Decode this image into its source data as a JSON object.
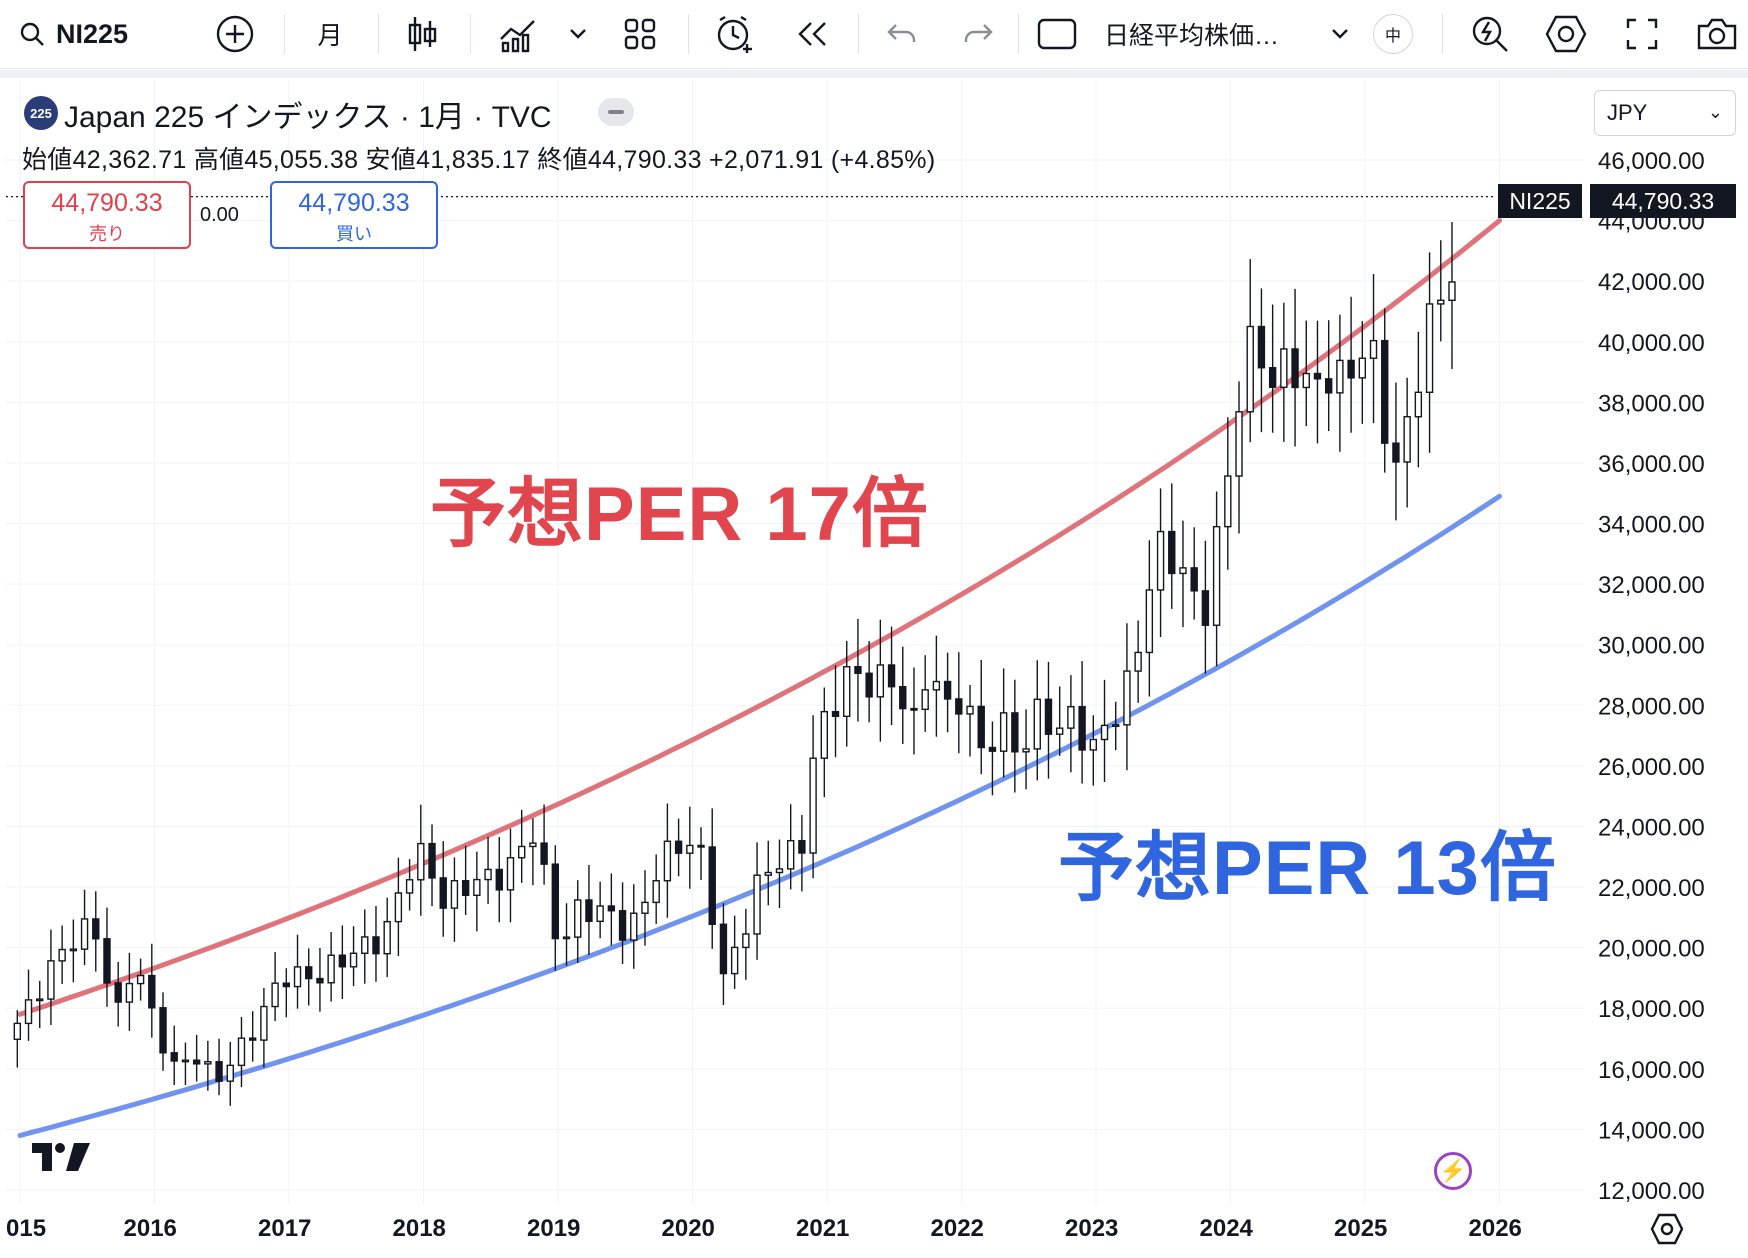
{
  "toolbar": {
    "symbol": "NI225",
    "interval": "月",
    "indicator_name": "日経平均株価…",
    "lang_badge": "中"
  },
  "legend": {
    "badge": "225",
    "title": "Japan 225 インデックス · 1月 · TVC",
    "ohlc_line": "始値42,362.71 高値45,055.38 安値41,835.17 終値44,790.33 +2,071.91 (+4.85%)"
  },
  "trade": {
    "sell_price": "44,790.33",
    "sell_label": "売り",
    "spread": "0.00",
    "buy_price": "44,790.33",
    "buy_label": "買い"
  },
  "currency": "JPY",
  "last_price_tag": {
    "name": "NI225",
    "value": "44,790.33"
  },
  "annotations": {
    "upper": "予想PER 17倍",
    "lower": "予想PER 13倍"
  },
  "colors": {
    "per17": "#e0727a",
    "per13": "#6f93ee",
    "candle": "#131722",
    "grid": "#f0f3fa"
  },
  "chart_data": {
    "type": "candlestick",
    "interval": "monthly",
    "symbol": "NI225",
    "ylim": [
      12000,
      46000
    ],
    "y_ticks": [
      "46,000.00",
      "44,000.00",
      "42,000.00",
      "40,000.00",
      "38,000.00",
      "36,000.00",
      "34,000.00",
      "32,000.00",
      "30,000.00",
      "28,000.00",
      "26,000.00",
      "24,000.00",
      "22,000.00",
      "20,000.00",
      "18,000.00",
      "16,000.00",
      "14,000.00",
      "12,000.00"
    ],
    "x_ticks": [
      "015",
      "2016",
      "2017",
      "2018",
      "2019",
      "2020",
      "2021",
      "2022",
      "2023",
      "2024",
      "2025",
      "2026"
    ],
    "series": [
      {
        "name": "予想PER 17倍",
        "type": "curve",
        "x": [
          2015.0,
          2026.0
        ],
        "y": [
          17800,
          44000
        ]
      },
      {
        "name": "予想PER 13倍",
        "type": "curve",
        "x": [
          2015.0,
          2026.0
        ],
        "y": [
          13800,
          34900
        ]
      }
    ],
    "last_close": 44790.33
  }
}
